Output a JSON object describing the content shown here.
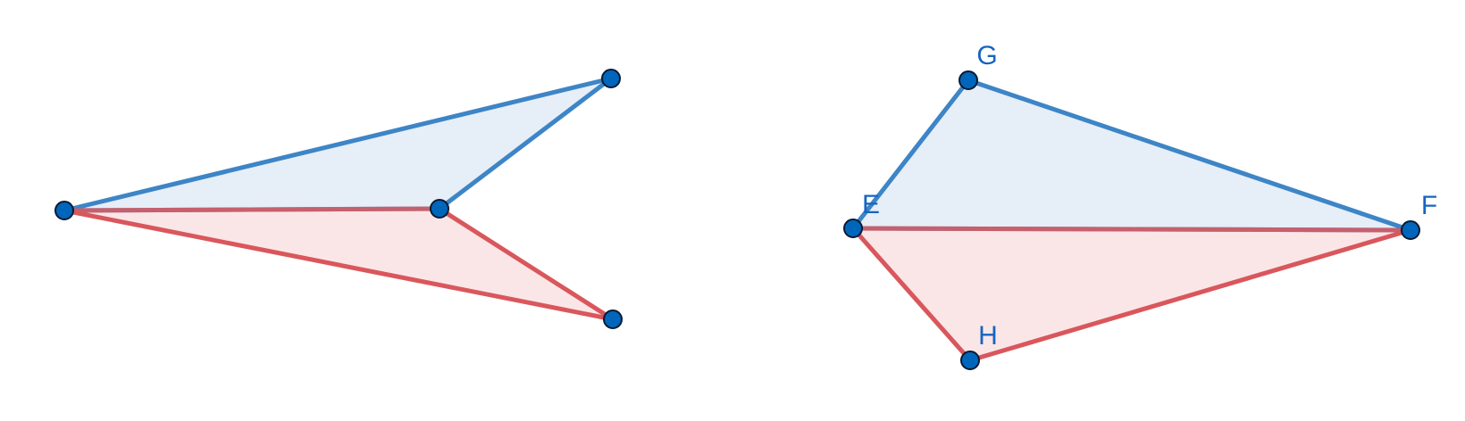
{
  "colors": {
    "blue_stroke": "#3d85c6",
    "blue_fill": "#e6eef8",
    "red_stroke": "#d9575c",
    "red_fill": "#fbe6e7",
    "point_fill": "#0066bb",
    "point_stroke": "#0a1a33",
    "label": "#1565c0"
  },
  "figures": [
    {
      "id": "left-figure",
      "points": [
        {
          "key": "p1",
          "label": ""
        },
        {
          "key": "p2",
          "label": ""
        },
        {
          "key": "p3",
          "label": ""
        },
        {
          "key": "p4",
          "label": ""
        }
      ],
      "triangles": [
        {
          "color": "blue",
          "vertices": [
            "p1",
            "p2",
            "p3"
          ]
        },
        {
          "color": "red",
          "vertices": [
            "p1",
            "p2",
            "p4"
          ]
        }
      ]
    },
    {
      "id": "right-figure",
      "points": [
        {
          "key": "E",
          "label": "E"
        },
        {
          "key": "F",
          "label": "F"
        },
        {
          "key": "G",
          "label": "G"
        },
        {
          "key": "H",
          "label": "H"
        }
      ],
      "triangles": [
        {
          "color": "blue",
          "vertices": [
            "E",
            "F",
            "G"
          ]
        },
        {
          "color": "red",
          "vertices": [
            "E",
            "F",
            "H"
          ]
        }
      ]
    }
  ]
}
